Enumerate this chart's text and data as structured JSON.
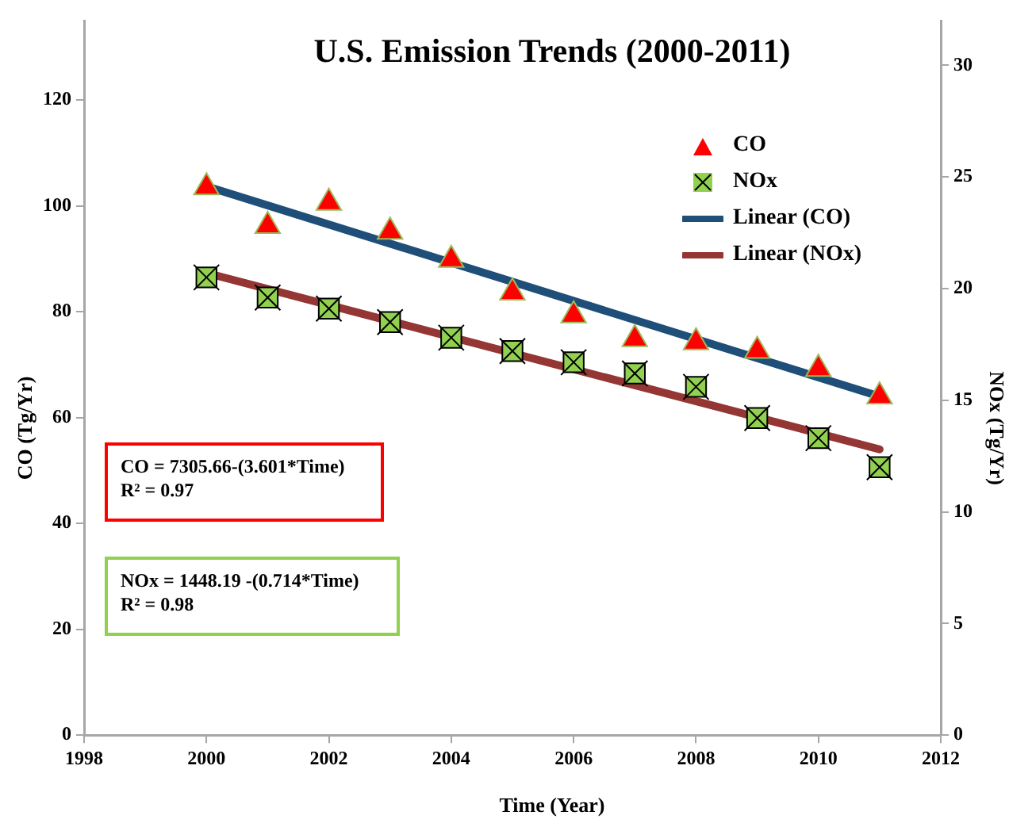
{
  "chart_data": {
    "type": "scatter",
    "title": "U.S. Emission Trends (2000-2011)",
    "xlabel": "Time (Year)",
    "ylabel": "CO (Tg/Yr)",
    "y2label": "NOx (Tg/Yr)",
    "xlim": [
      1998,
      2012
    ],
    "xticks": [
      1998,
      2000,
      2002,
      2004,
      2006,
      2008,
      2010,
      2012
    ],
    "ylim": [
      0,
      135
    ],
    "yticks": [
      0,
      20,
      40,
      60,
      80,
      100,
      120
    ],
    "y2lim": [
      0,
      32
    ],
    "y2ticks": [
      0,
      5,
      10,
      15,
      20,
      25,
      30
    ],
    "grid": false,
    "legend": "top right",
    "series": [
      {
        "name": "CO",
        "marker": "triangle",
        "color": "#ff0000",
        "x": [
          2000,
          2001,
          2002,
          2003,
          2004,
          2005,
          2006,
          2007,
          2008,
          2009,
          2010,
          2011
        ],
        "values": [
          103.5,
          96.2,
          100.6,
          95.1,
          89.8,
          83.6,
          79.3,
          74.8,
          74.2,
          72.6,
          69.2,
          64.0
        ]
      },
      {
        "name": "NOx",
        "marker": "square",
        "color": "#92d050",
        "axis": "y2",
        "x": [
          2000,
          2001,
          2002,
          2003,
          2004,
          2005,
          2006,
          2007,
          2008,
          2009,
          2010,
          2011
        ],
        "values": [
          20.5,
          19.6,
          19.1,
          18.5,
          17.8,
          17.2,
          16.7,
          16.2,
          15.6,
          14.2,
          13.3,
          12.0
        ]
      },
      {
        "name": "Linear (CO)",
        "type": "line",
        "marker": "none",
        "color": "#1f4e79",
        "x": [
          2000,
          2011
        ],
        "values": [
          103.7,
          64.0
        ]
      },
      {
        "name": "Linear (NOx)",
        "type": "line",
        "marker": "none",
        "color": "#943634",
        "axis": "y2",
        "x": [
          2000,
          2011
        ],
        "values": [
          20.7,
          12.8
        ]
      }
    ],
    "annotations": [
      "CO = 7305.66-(3.601*Time)\nR² = 0.97",
      "NOx = 1448.19 -(0.714*Time)\nR² = 0.98"
    ]
  }
}
